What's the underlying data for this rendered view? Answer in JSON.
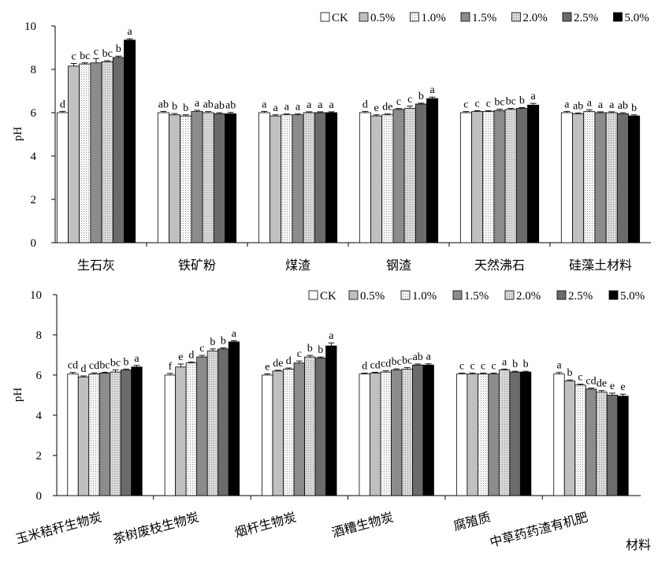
{
  "chart_data": [
    {
      "type": "bar",
      "ylabel": "pH",
      "ylim": [
        0,
        10
      ],
      "yticks": [
        0,
        2,
        4,
        6,
        8,
        10
      ],
      "legend": "top-right",
      "categories": [
        "生石灰",
        "铁矿粉",
        "煤渣",
        "钢渣",
        "天然沸石",
        "硅藻土材料"
      ],
      "series": [
        {
          "name": "CK",
          "color": "#ffffff",
          "pattern": "none",
          "values": [
            6.0,
            6.0,
            6.0,
            6.0,
            6.0,
            6.0
          ],
          "errors": [
            0.06,
            0.06,
            0.06,
            0.06,
            0.05,
            0.06
          ],
          "letters": [
            "d",
            "ab",
            "a",
            "d",
            "c",
            "a"
          ]
        },
        {
          "name": "0.5%",
          "color": "#c0c0c0",
          "pattern": "none",
          "values": [
            8.15,
            5.9,
            5.85,
            5.85,
            6.05,
            5.95
          ],
          "errors": [
            0.12,
            0.06,
            0.05,
            0.05,
            0.04,
            0.04
          ],
          "letters": [
            "c",
            "b",
            "a",
            "e",
            "c",
            "ab"
          ]
        },
        {
          "name": "1.0%",
          "color": "#f7f7f7",
          "pattern": "dots",
          "values": [
            8.25,
            5.85,
            5.9,
            5.9,
            6.05,
            6.05
          ],
          "errors": [
            0.05,
            0.05,
            0.04,
            0.04,
            0.04,
            0.08
          ],
          "letters": [
            "bc",
            "b",
            "a",
            "de",
            "c",
            "a"
          ]
        },
        {
          "name": "1.5%",
          "color": "#8c8c8c",
          "pattern": "none",
          "values": [
            8.3,
            6.05,
            5.9,
            6.15,
            6.1,
            6.0
          ],
          "errors": [
            0.2,
            0.06,
            0.04,
            0.04,
            0.06,
            0.04
          ],
          "letters": [
            "c",
            "a",
            "a",
            "c",
            "bc",
            "a"
          ]
        },
        {
          "name": "2.0%",
          "color": "#d9d9d9",
          "pattern": "dots",
          "values": [
            8.35,
            6.0,
            6.0,
            6.2,
            6.15,
            6.0
          ],
          "errors": [
            0.05,
            0.05,
            0.04,
            0.1,
            0.05,
            0.04
          ],
          "letters": [
            "bc",
            "ab",
            "a",
            "c",
            "bc",
            "a"
          ]
        },
        {
          "name": "2.5%",
          "color": "#6b6b6b",
          "pattern": "none",
          "values": [
            8.55,
            5.95,
            6.0,
            6.4,
            6.2,
            5.95
          ],
          "errors": [
            0.06,
            0.05,
            0.04,
            0.04,
            0.04,
            0.05
          ],
          "letters": [
            "b",
            "ab",
            "a",
            "b",
            "b",
            "ab"
          ]
        },
        {
          "name": "5.0%",
          "color": "#000000",
          "pattern": "none",
          "values": [
            9.35,
            5.95,
            6.0,
            6.65,
            6.35,
            5.85
          ],
          "errors": [
            0.06,
            0.06,
            0.04,
            0.07,
            0.08,
            0.05
          ],
          "letters": [
            "a",
            "ab",
            "a",
            "a",
            "a",
            "b"
          ]
        }
      ]
    },
    {
      "type": "bar",
      "ylabel": "pH",
      "xlabel": "材料",
      "ylim": [
        0,
        10
      ],
      "yticks": [
        0,
        2,
        4,
        6,
        8,
        10
      ],
      "legend": "top-right",
      "categories": [
        "玉米秸秆生物炭",
        "茶树废枝生物炭",
        "烟杆生物炭",
        "酒糟生物炭",
        "腐殖质",
        "中草药药渣有机肥"
      ],
      "series": [
        {
          "name": "CK",
          "color": "#ffffff",
          "pattern": "none",
          "values": [
            6.05,
            6.0,
            6.0,
            6.05,
            6.05,
            6.05
          ],
          "errors": [
            0.08,
            0.08,
            0.06,
            0.05,
            0.05,
            0.08
          ],
          "letters": [
            "cd",
            "f",
            "e",
            "d",
            "c",
            "a"
          ]
        },
        {
          "name": "0.5%",
          "color": "#c0c0c0",
          "pattern": "none",
          "values": [
            5.9,
            6.4,
            6.2,
            6.1,
            6.05,
            5.7
          ],
          "errors": [
            0.06,
            0.15,
            0.04,
            0.04,
            0.05,
            0.06
          ],
          "letters": [
            "d",
            "e",
            "de",
            "cd",
            "c",
            "b"
          ]
        },
        {
          "name": "1.0%",
          "color": "#f7f7f7",
          "pattern": "dots",
          "values": [
            6.05,
            6.6,
            6.3,
            6.15,
            6.05,
            5.5
          ],
          "errors": [
            0.06,
            0.05,
            0.05,
            0.06,
            0.05,
            0.05
          ],
          "letters": [
            "cd",
            "d",
            "d",
            "cd",
            "c",
            "c"
          ]
        },
        {
          "name": "1.5%",
          "color": "#8c8c8c",
          "pattern": "none",
          "values": [
            6.1,
            6.9,
            6.6,
            6.25,
            6.05,
            5.3
          ],
          "errors": [
            0.04,
            0.08,
            0.1,
            0.06,
            0.05,
            0.05
          ],
          "letters": [
            "bc",
            "c",
            "c",
            "bc",
            "c",
            "cd"
          ]
        },
        {
          "name": "2.0%",
          "color": "#d9d9d9",
          "pattern": "dots",
          "values": [
            6.15,
            7.2,
            6.9,
            6.3,
            6.25,
            5.15
          ],
          "errors": [
            0.1,
            0.1,
            0.08,
            0.08,
            0.05,
            0.08
          ],
          "letters": [
            "bc",
            "b",
            "b",
            "bc",
            "a",
            "de"
          ]
        },
        {
          "name": "2.5%",
          "color": "#6b6b6b",
          "pattern": "none",
          "values": [
            6.25,
            7.3,
            6.85,
            6.5,
            6.15,
            5.0
          ],
          "errors": [
            0.05,
            0.05,
            0.05,
            0.05,
            0.04,
            0.1
          ],
          "letters": [
            "b",
            "b",
            "b",
            "ab",
            "b",
            "e"
          ]
        },
        {
          "name": "5.0%",
          "color": "#000000",
          "pattern": "none",
          "values": [
            6.4,
            7.65,
            7.45,
            6.5,
            6.15,
            4.95
          ],
          "errors": [
            0.08,
            0.06,
            0.15,
            0.06,
            0.04,
            0.1
          ],
          "letters": [
            "a",
            "a",
            "a",
            "a",
            "b",
            "e"
          ]
        }
      ]
    }
  ]
}
